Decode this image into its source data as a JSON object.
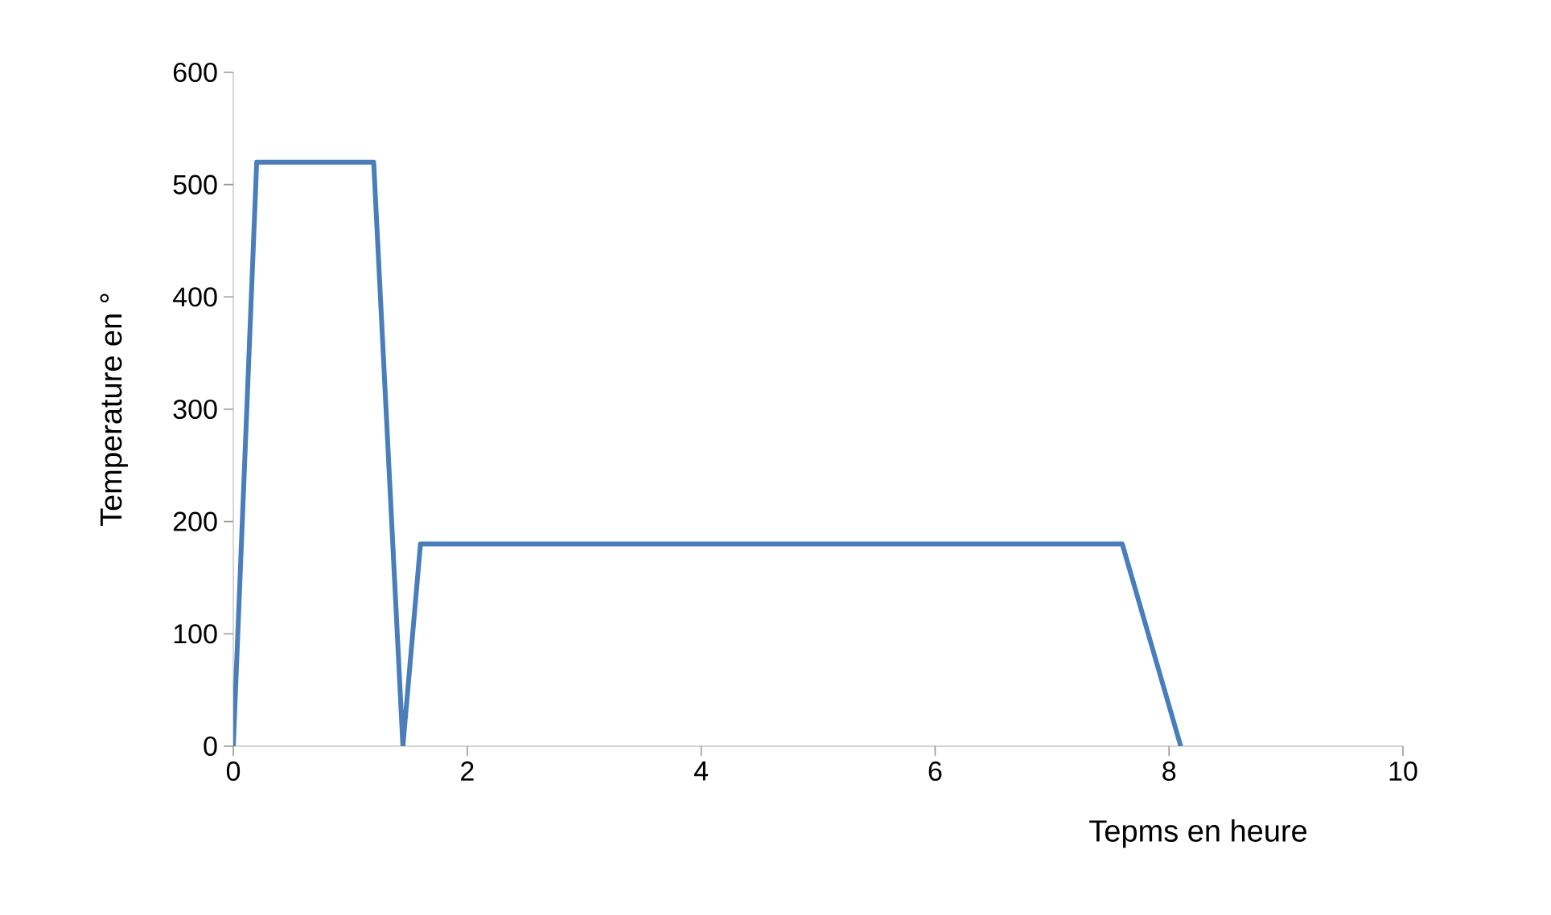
{
  "chart_data": {
    "type": "line",
    "xlabel": "Tepms en heure",
    "ylabel": "Temperature en °",
    "series": [
      {
        "color": "#4a7ebb",
        "x": [
          0,
          0.2,
          1.2,
          1.45,
          1.6,
          7.6,
          8.1
        ],
        "values": [
          0,
          520,
          520,
          0,
          180,
          180,
          0
        ]
      }
    ],
    "xlim": [
      0,
      10
    ],
    "xticks": [
      0,
      2,
      4,
      6,
      8,
      10
    ],
    "ylim": [
      0,
      600
    ],
    "yticks": [
      0,
      100,
      200,
      300,
      400,
      500,
      600
    ],
    "grid": false,
    "marker": "none",
    "line_style": "solid"
  }
}
